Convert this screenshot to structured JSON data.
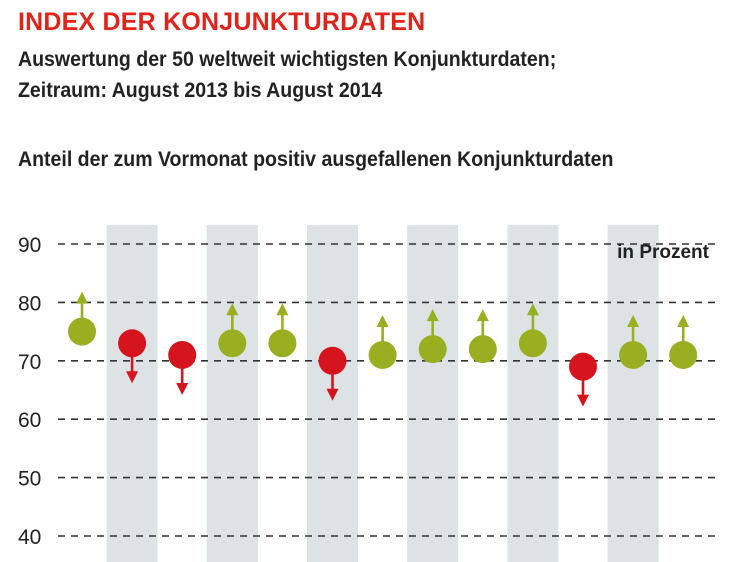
{
  "title": "INDEX DER KONJUNKTURDATEN",
  "subtitle_lines": [
    "Auswertung der 50 weltweit wichtigsten Konjunkturdaten;",
    "Zeitraum: August 2013 bis August 2014"
  ],
  "colors": {
    "title": "#e2231a",
    "up": "#9aae22",
    "down": "#d6141e",
    "band": "#dde2e5",
    "grid": "#333333"
  },
  "chart_data": {
    "type": "scatter",
    "title": "Anteil der zum Vormonat positiv ausgefallenen Konjunkturdaten",
    "unit_label": "in Prozent",
    "ylim": [
      40,
      90
    ],
    "yticks": [
      40,
      50,
      60,
      70,
      80,
      90
    ],
    "grid": true,
    "n_points": 13,
    "values": [
      75,
      73,
      71,
      73,
      73,
      70,
      71,
      72,
      72,
      73,
      69,
      71,
      71
    ],
    "directions": [
      "up",
      "down",
      "down",
      "up",
      "up",
      "down",
      "up",
      "up",
      "up",
      "up",
      "down",
      "up",
      "up"
    ],
    "shaded_positions": [
      1,
      3,
      5,
      7,
      9,
      11
    ]
  }
}
